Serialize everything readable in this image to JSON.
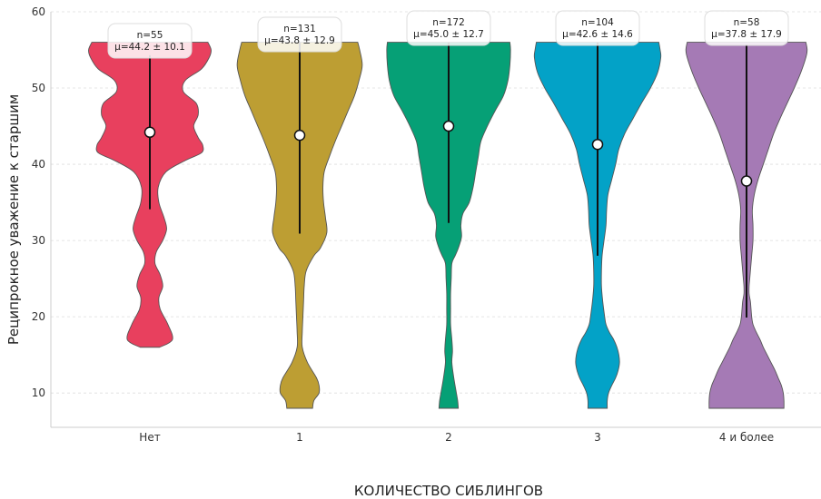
{
  "chart_data": {
    "type": "violin",
    "title": "",
    "xlabel": "КОЛИЧЕСТВО СИБЛИНГОВ",
    "ylabel": "Реципрокное уважение к старшим",
    "ylim": [
      5.5,
      60
    ],
    "yticks": [
      10,
      20,
      30,
      40,
      50,
      60
    ],
    "grid": "horizontal dashed",
    "categories": [
      "Нет",
      "1",
      "2",
      "3",
      "4 и более"
    ],
    "series": [
      {
        "category": "Нет",
        "color": "#e8405e",
        "n_label": "n=55",
        "mean_label": "μ=44.2 ± 10.1",
        "mean": 44.2,
        "sd": 10.1,
        "line": [
          34.1,
          54.3
        ],
        "min": 16,
        "max": 56,
        "profile": [
          [
            16,
            0.15
          ],
          [
            17,
            0.35
          ],
          [
            19,
            0.28
          ],
          [
            21,
            0.16
          ],
          [
            22.5,
            0.14
          ],
          [
            24,
            0.2
          ],
          [
            25.5,
            0.16
          ],
          [
            27,
            0.08
          ],
          [
            28.5,
            0.1
          ],
          [
            30,
            0.2
          ],
          [
            31.5,
            0.26
          ],
          [
            33,
            0.22
          ],
          [
            35,
            0.14
          ],
          [
            37,
            0.13
          ],
          [
            39,
            0.25
          ],
          [
            40.5,
            0.55
          ],
          [
            41.5,
            0.8
          ],
          [
            42.5,
            0.82
          ],
          [
            43.5,
            0.75
          ],
          [
            45,
            0.68
          ],
          [
            46.5,
            0.75
          ],
          [
            48,
            0.72
          ],
          [
            49.5,
            0.52
          ],
          [
            51,
            0.55
          ],
          [
            52.5,
            0.8
          ],
          [
            54,
            0.92
          ],
          [
            55,
            0.95
          ],
          [
            56,
            0.9
          ]
        ]
      },
      {
        "category": "1",
        "color": "#bd9e33",
        "n_label": "n=131",
        "mean_label": "μ=43.8 ± 12.9",
        "mean": 43.8,
        "sd": 12.9,
        "line": [
          30.9,
          56.7
        ],
        "min": 8,
        "max": 56,
        "profile": [
          [
            8,
            0.2
          ],
          [
            9,
            0.22
          ],
          [
            10,
            0.3
          ],
          [
            11,
            0.3
          ],
          [
            12,
            0.26
          ],
          [
            14,
            0.12
          ],
          [
            16,
            0.04
          ],
          [
            18,
            0.04
          ],
          [
            20,
            0.05
          ],
          [
            22,
            0.06
          ],
          [
            24,
            0.07
          ],
          [
            26,
            0.1
          ],
          [
            28,
            0.22
          ],
          [
            29,
            0.32
          ],
          [
            31,
            0.42
          ],
          [
            33,
            0.4
          ],
          [
            35,
            0.37
          ],
          [
            37,
            0.36
          ],
          [
            39,
            0.38
          ],
          [
            41,
            0.46
          ],
          [
            43,
            0.55
          ],
          [
            45,
            0.65
          ],
          [
            47,
            0.75
          ],
          [
            49,
            0.85
          ],
          [
            51,
            0.92
          ],
          [
            53,
            0.97
          ],
          [
            55,
            0.93
          ],
          [
            56,
            0.9
          ]
        ]
      },
      {
        "category": "2",
        "color": "#06a076",
        "n_label": "n=172",
        "mean_label": "μ=45.0 ± 12.7",
        "mean": 45.0,
        "sd": 12.7,
        "line": [
          32.3,
          57.7
        ],
        "min": 8,
        "max": 56,
        "profile": [
          [
            8,
            0.15
          ],
          [
            9,
            0.14
          ],
          [
            10,
            0.12
          ],
          [
            12,
            0.08
          ],
          [
            14,
            0.05
          ],
          [
            15.5,
            0.06
          ],
          [
            17,
            0.05
          ],
          [
            19,
            0.03
          ],
          [
            21,
            0.03
          ],
          [
            23,
            0.03
          ],
          [
            25,
            0.04
          ],
          [
            27,
            0.05
          ],
          [
            28,
            0.1
          ],
          [
            29,
            0.15
          ],
          [
            30.5,
            0.2
          ],
          [
            32,
            0.19
          ],
          [
            33.5,
            0.22
          ],
          [
            35,
            0.32
          ],
          [
            37,
            0.38
          ],
          [
            39,
            0.42
          ],
          [
            41,
            0.46
          ],
          [
            43,
            0.5
          ],
          [
            45,
            0.6
          ],
          [
            47,
            0.72
          ],
          [
            49,
            0.85
          ],
          [
            51,
            0.92
          ],
          [
            53,
            0.95
          ],
          [
            55,
            0.96
          ],
          [
            56,
            0.95
          ]
        ]
      },
      {
        "category": "3",
        "color": "#03a2c7",
        "n_label": "n=104",
        "mean_label": "μ=42.6 ± 14.6",
        "mean": 42.6,
        "sd": 14.6,
        "line": [
          28.0,
          57.2
        ],
        "min": 8,
        "max": 56,
        "profile": [
          [
            8,
            0.15
          ],
          [
            9,
            0.15
          ],
          [
            10,
            0.17
          ],
          [
            11,
            0.22
          ],
          [
            12,
            0.28
          ],
          [
            13,
            0.32
          ],
          [
            14,
            0.34
          ],
          [
            15,
            0.33
          ],
          [
            16,
            0.3
          ],
          [
            17,
            0.25
          ],
          [
            18,
            0.18
          ],
          [
            19,
            0.13
          ],
          [
            20,
            0.11
          ],
          [
            22,
            0.08
          ],
          [
            24,
            0.06
          ],
          [
            26,
            0.06
          ],
          [
            28,
            0.07
          ],
          [
            30,
            0.1
          ],
          [
            32,
            0.13
          ],
          [
            34,
            0.14
          ],
          [
            36,
            0.16
          ],
          [
            38,
            0.22
          ],
          [
            40,
            0.28
          ],
          [
            42,
            0.33
          ],
          [
            44,
            0.42
          ],
          [
            46,
            0.55
          ],
          [
            48,
            0.68
          ],
          [
            50,
            0.82
          ],
          [
            52,
            0.93
          ],
          [
            54,
            0.98
          ],
          [
            55,
            0.97
          ],
          [
            56,
            0.95
          ]
        ]
      },
      {
        "category": "4 и более",
        "color": "#a57ab5",
        "n_label": "n=58",
        "mean_label": "μ=37.8 ± 17.9",
        "mean": 37.8,
        "sd": 17.9,
        "line": [
          19.9,
          55.7
        ],
        "min": 8,
        "max": 56,
        "profile": [
          [
            8,
            0.58
          ],
          [
            9,
            0.58
          ],
          [
            10,
            0.57
          ],
          [
            11,
            0.54
          ],
          [
            12,
            0.49
          ],
          [
            13,
            0.44
          ],
          [
            14,
            0.38
          ],
          [
            15,
            0.32
          ],
          [
            16,
            0.26
          ],
          [
            17,
            0.21
          ],
          [
            18,
            0.15
          ],
          [
            19,
            0.1
          ],
          [
            20,
            0.08
          ],
          [
            21,
            0.07
          ],
          [
            22,
            0.06
          ],
          [
            23,
            0.04
          ],
          [
            24,
            0.04
          ],
          [
            25,
            0.05
          ],
          [
            26,
            0.06
          ],
          [
            27,
            0.07
          ],
          [
            28,
            0.08
          ],
          [
            30,
            0.1
          ],
          [
            32,
            0.1
          ],
          [
            34,
            0.09
          ],
          [
            36,
            0.12
          ],
          [
            38,
            0.18
          ],
          [
            40,
            0.26
          ],
          [
            42,
            0.34
          ],
          [
            44,
            0.42
          ],
          [
            46,
            0.52
          ],
          [
            48,
            0.63
          ],
          [
            50,
            0.74
          ],
          [
            52,
            0.84
          ],
          [
            54,
            0.92
          ],
          [
            55,
            0.94
          ],
          [
            56,
            0.92
          ]
        ]
      }
    ]
  }
}
